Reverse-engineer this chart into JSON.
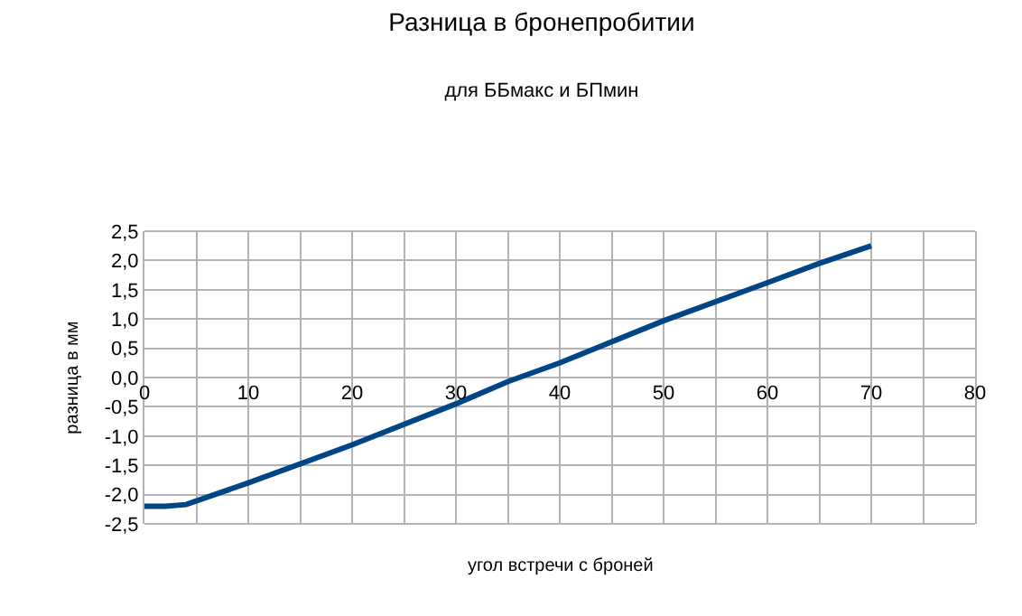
{
  "chart_data": {
    "type": "line",
    "title": "Разница в бронепробитии",
    "subtitle": "для ББмакс и БПмин",
    "xlabel": "угол встречи с броней",
    "ylabel": "разница в мм",
    "x": [
      0,
      2,
      4,
      10,
      20,
      30,
      35,
      40,
      50,
      60,
      65,
      70
    ],
    "series": [
      {
        "color": "#004586",
        "values": [
          -2.2,
          -2.2,
          -2.17,
          -1.8,
          -1.15,
          -0.45,
          -0.07,
          0.25,
          0.97,
          1.62,
          1.95,
          2.25
        ]
      }
    ],
    "xlim": [
      0,
      80
    ],
    "xticks": [
      0,
      {
        "value": 5,
        "label": null
      },
      10,
      {
        "value": 15,
        "label": null
      },
      20,
      {
        "value": 25,
        "label": null
      },
      30,
      {
        "value": 35,
        "label": null
      },
      40,
      {
        "value": 45,
        "label": null
      },
      50,
      {
        "value": 55,
        "label": null
      },
      60,
      {
        "value": 65,
        "label": null
      },
      70,
      {
        "value": 75,
        "label": null
      },
      80
    ],
    "ylim": [
      -2.5,
      2.5
    ],
    "yticks": [
      {
        "value": -2.5,
        "label": "-2,5"
      },
      {
        "value": -2,
        "label": "-2,0"
      },
      {
        "value": -1.5,
        "label": "-1,5"
      },
      {
        "value": -1,
        "label": "-1,0"
      },
      {
        "value": -0.5,
        "label": "-0,5"
      },
      {
        "value": 0,
        "label": "0,0"
      },
      {
        "value": 0.5,
        "label": "0,5"
      },
      {
        "value": 1,
        "label": "1,0"
      },
      {
        "value": 1.5,
        "label": "1,5"
      },
      {
        "value": 2,
        "label": "2,0"
      },
      {
        "value": 2.5,
        "label": "2,5"
      }
    ],
    "grid": true,
    "marker": "none",
    "line_style": "solid"
  }
}
